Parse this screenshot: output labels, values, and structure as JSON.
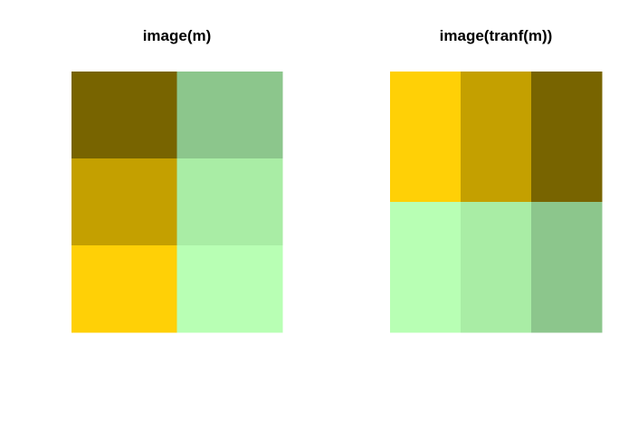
{
  "chart_data": [
    {
      "type": "heatmap",
      "title": "image(m)",
      "xlabel": "",
      "ylabel": "",
      "axes": false,
      "grid": false,
      "legend": "none",
      "n_cols": 2,
      "n_rows": 3,
      "cells": [
        [
          "#786400",
          "#8CC68C"
        ],
        [
          "#C4A000",
          "#A9EDA5"
        ],
        [
          "#FFD006",
          "#B8FFB4"
        ]
      ]
    },
    {
      "type": "heatmap",
      "title": "image(tranf(m))",
      "xlabel": "",
      "ylabel": "",
      "axes": false,
      "grid": false,
      "legend": "none",
      "n_cols": 3,
      "n_rows": 2,
      "cells": [
        [
          "#FFD006",
          "#C4A000",
          "#786400"
        ],
        [
          "#B8FFB4",
          "#A9EDA5",
          "#8CC68C"
        ]
      ]
    }
  ]
}
